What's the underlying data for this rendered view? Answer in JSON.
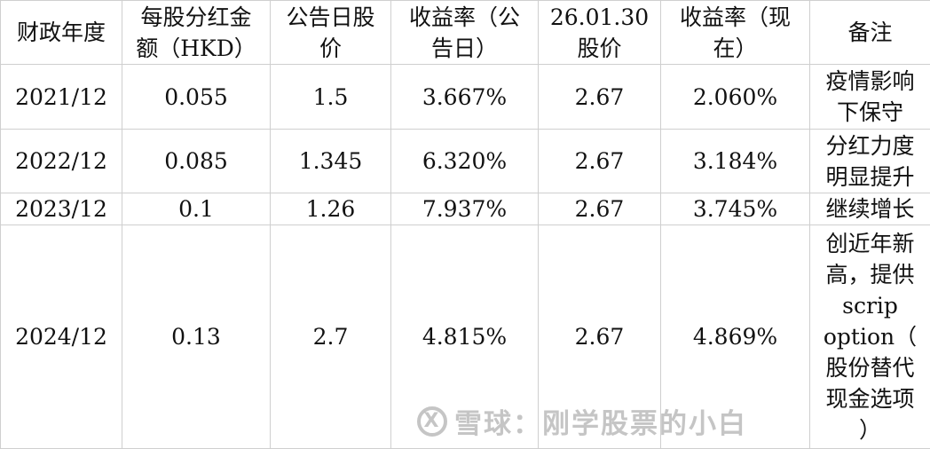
{
  "table": {
    "headers": [
      [
        "财政年度"
      ],
      [
        "每股分红金",
        "额（HKD）"
      ],
      [
        "公告日股",
        "价"
      ],
      [
        "收益率（公",
        "告日）"
      ],
      [
        "26.01.30",
        "股价"
      ],
      [
        "收益率（现",
        "在）"
      ],
      [
        "备注"
      ]
    ],
    "rows": [
      {
        "year": "2021/12",
        "dps": "0.055",
        "price": "1.5",
        "yield_announce": "3.667%",
        "price_now": "2.67",
        "yield_now": "2.060%",
        "note": [
          "疫情影响",
          "下保守"
        ]
      },
      {
        "year": "2022/12",
        "dps": "0.085",
        "price": "1.345",
        "yield_announce": "6.320%",
        "price_now": "2.67",
        "yield_now": "3.184%",
        "note": [
          "分红力度",
          "明显提升"
        ]
      },
      {
        "year": "2023/12",
        "dps": "0.1",
        "price": "1.26",
        "yield_announce": "7.937%",
        "price_now": "2.67",
        "yield_now": "3.745%",
        "note": [
          "继续增长"
        ]
      },
      {
        "year": "2024/12",
        "dps": "0.13",
        "price": "2.7",
        "yield_announce": "4.815%",
        "price_now": "2.67",
        "yield_now": "4.869%",
        "note": [
          "创近年新",
          "高，提供",
          "scrip",
          "option（",
          "股份替代",
          "现金选项",
          "）"
        ]
      }
    ]
  },
  "watermark": {
    "logo_icon": "xueqiu-logo-icon",
    "text": "雪球：刚学股票的小白"
  }
}
